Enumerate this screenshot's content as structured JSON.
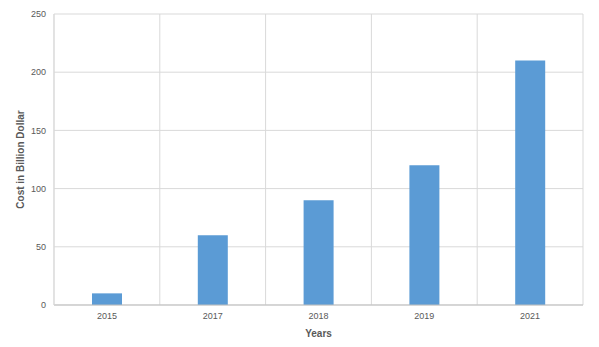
{
  "chart_data": {
    "type": "bar",
    "categories": [
      "2015",
      "2017",
      "2018",
      "2019",
      "2021"
    ],
    "values": [
      10,
      60,
      90,
      120,
      210
    ],
    "color": "#5b9bd5",
    "x_label": "Years",
    "y_label": "Cost in Billion Dollar",
    "ylim": [
      0,
      250
    ],
    "yticks": [
      0,
      50,
      100,
      150,
      200,
      250
    ],
    "grid": true
  }
}
